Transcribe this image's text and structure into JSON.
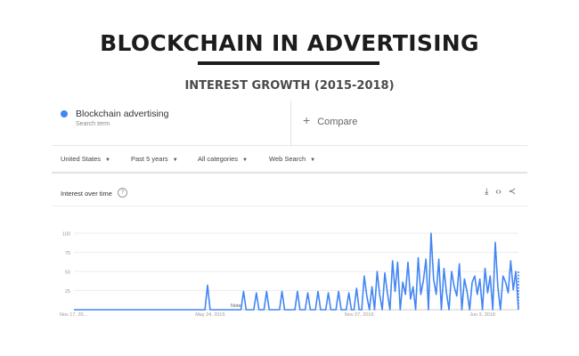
{
  "header": {
    "title": "BLOCKCHAIN IN ADVERTISING",
    "subtitle": "INTEREST GROWTH (2015-2018)"
  },
  "search_term": {
    "name": "Blockchain advertising",
    "type": "Search term",
    "color": "#4285f4"
  },
  "compare": {
    "label": "Compare",
    "icon": "plus-icon"
  },
  "filters": [
    {
      "label": "United States"
    },
    {
      "label": "Past 5 years"
    },
    {
      "label": "All categories"
    },
    {
      "label": "Web Search"
    }
  ],
  "panel": {
    "title": "Interest over time",
    "help_icon": "question-icon",
    "tools": [
      "download-icon",
      "embed-icon",
      "share-icon"
    ]
  },
  "chart_data": {
    "type": "line",
    "color": "#4285f4",
    "ylim": [
      0,
      100
    ],
    "yticks": [
      25,
      50,
      75,
      100
    ],
    "xticks": [
      "Nov 17, 20...",
      "May 24, 2015",
      "Nov 27, 2016",
      "Jun 3, 2018"
    ],
    "annotations": [
      "Note"
    ],
    "series": [
      {
        "x": [
          0,
          51,
          52,
          53,
          54,
          65,
          66,
          67,
          70,
          71,
          72,
          74,
          75,
          76,
          80,
          81,
          82,
          86,
          87,
          88,
          90,
          91,
          92,
          94,
          95,
          96,
          98,
          99,
          100,
          102,
          103,
          104,
          106,
          107,
          108,
          109,
          110,
          111,
          112,
          113,
          114,
          115,
          116,
          117,
          118,
          119,
          120,
          121,
          122,
          123,
          124,
          125,
          126,
          127,
          128,
          129,
          130,
          131,
          132,
          133,
          134,
          135,
          136,
          137,
          138,
          139,
          140,
          141,
          142,
          143,
          144,
          145,
          146,
          147,
          148,
          149,
          150,
          151,
          152,
          153,
          154,
          155,
          156,
          157,
          158,
          159,
          160,
          161,
          162,
          163,
          164,
          165,
          166,
          167,
          168,
          169,
          170,
          171,
          172,
          173
        ],
        "y": [
          0,
          0,
          32,
          0,
          0,
          0,
          24,
          0,
          0,
          22,
          0,
          0,
          24,
          0,
          0,
          24,
          0,
          0,
          24,
          0,
          0,
          22,
          0,
          0,
          24,
          0,
          0,
          22,
          0,
          0,
          24,
          0,
          0,
          22,
          0,
          0,
          28,
          0,
          0,
          44,
          18,
          0,
          30,
          0,
          50,
          20,
          0,
          48,
          22,
          0,
          64,
          24,
          62,
          0,
          36,
          20,
          62,
          14,
          30,
          0,
          68,
          20,
          38,
          66,
          0,
          100,
          40,
          20,
          66,
          0,
          54,
          22,
          0,
          50,
          30,
          18,
          60,
          0,
          40,
          24,
          0,
          36,
          44,
          20,
          40,
          0,
          54,
          22,
          44,
          0,
          88,
          30,
          0,
          44,
          36,
          22,
          64,
          26,
          50,
          0
        ]
      }
    ]
  }
}
